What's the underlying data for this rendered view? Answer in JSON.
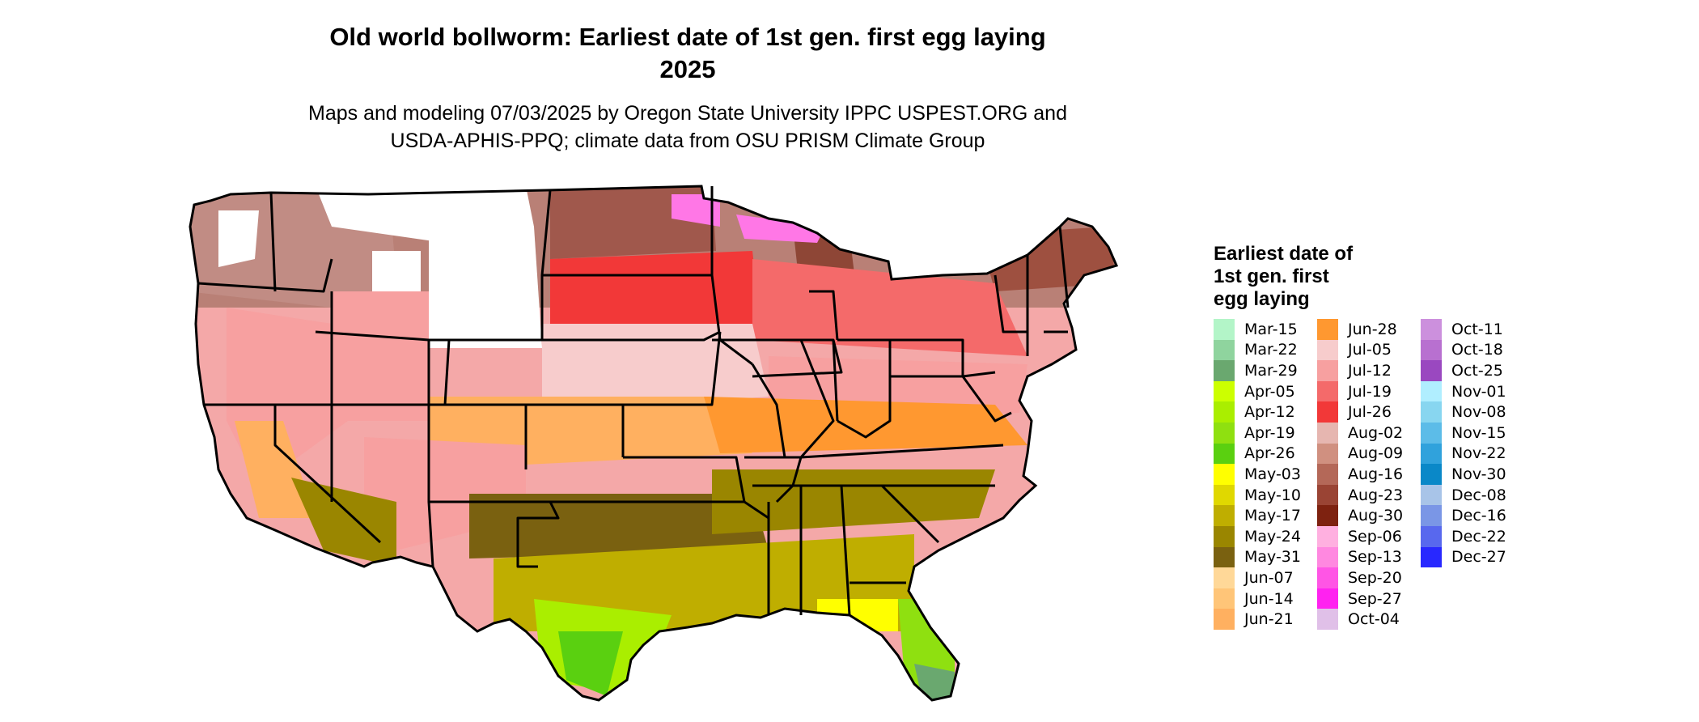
{
  "title": "Old world bollworm: Earliest date of 1st gen. first egg laying",
  "title_year": "2025",
  "subtitle_line1": "Maps and modeling 07/03/2025 by Oregon State University IPPC USPEST.ORG and",
  "subtitle_line2": "USDA-APHIS-PPQ; climate data from OSU PRISM Climate Group",
  "legend": {
    "title": "Earliest date of 1st gen. first egg laying",
    "entries": [
      {
        "label": "Mar-15",
        "color": "#b3f5c8"
      },
      {
        "label": "Mar-22",
        "color": "#8fd49e"
      },
      {
        "label": "Mar-29",
        "color": "#6aa86f"
      },
      {
        "label": "Apr-05",
        "color": "#ccff00"
      },
      {
        "label": "Apr-12",
        "color": "#aaee00"
      },
      {
        "label": "Apr-19",
        "color": "#8fe010"
      },
      {
        "label": "Apr-26",
        "color": "#5ad010"
      },
      {
        "label": "May-03",
        "color": "#ffff00"
      },
      {
        "label": "May-10",
        "color": "#e0d800"
      },
      {
        "label": "May-17",
        "color": "#bfae00"
      },
      {
        "label": "May-24",
        "color": "#9a8600"
      },
      {
        "label": "May-31",
        "color": "#7a6110"
      },
      {
        "label": "Jun-07",
        "color": "#ffd898"
      },
      {
        "label": "Jun-14",
        "color": "#ffc578"
      },
      {
        "label": "Jun-21",
        "color": "#ffb060"
      },
      {
        "label": "Jun-28",
        "color": "#ff9830"
      },
      {
        "label": "Jul-05",
        "color": "#f7cccc"
      },
      {
        "label": "Jul-12",
        "color": "#f7a0a0"
      },
      {
        "label": "Jul-19",
        "color": "#f46a6a"
      },
      {
        "label": "Jul-26",
        "color": "#f23838"
      },
      {
        "label": "Aug-02",
        "color": "#e6b6b0"
      },
      {
        "label": "Aug-09",
        "color": "#d09080"
      },
      {
        "label": "Aug-16",
        "color": "#b46858"
      },
      {
        "label": "Aug-23",
        "color": "#9a4434"
      },
      {
        "label": "Aug-30",
        "color": "#7e2210"
      },
      {
        "label": "Sep-06",
        "color": "#ffb0e0"
      },
      {
        "label": "Sep-13",
        "color": "#ff88e0"
      },
      {
        "label": "Sep-20",
        "color": "#ff55e5"
      },
      {
        "label": "Sep-27",
        "color": "#ff22f0"
      },
      {
        "label": "Oct-04",
        "color": "#e0c0e8"
      },
      {
        "label": "Oct-11",
        "color": "#cc90dd"
      },
      {
        "label": "Oct-18",
        "color": "#b870d0"
      },
      {
        "label": "Oct-25",
        "color": "#9a48c0"
      },
      {
        "label": "Nov-01",
        "color": "#b0eeff"
      },
      {
        "label": "Nov-08",
        "color": "#88d6f0"
      },
      {
        "label": "Nov-15",
        "color": "#5cbce8"
      },
      {
        "label": "Nov-22",
        "color": "#30a2dc"
      },
      {
        "label": "Nov-30",
        "color": "#0a88c8"
      },
      {
        "label": "Dec-08",
        "color": "#a8c4e8"
      },
      {
        "label": "Dec-16",
        "color": "#7a96e6"
      },
      {
        "label": "Dec-22",
        "color": "#5868ee"
      },
      {
        "label": "Dec-27",
        "color": "#2828ff"
      }
    ]
  }
}
